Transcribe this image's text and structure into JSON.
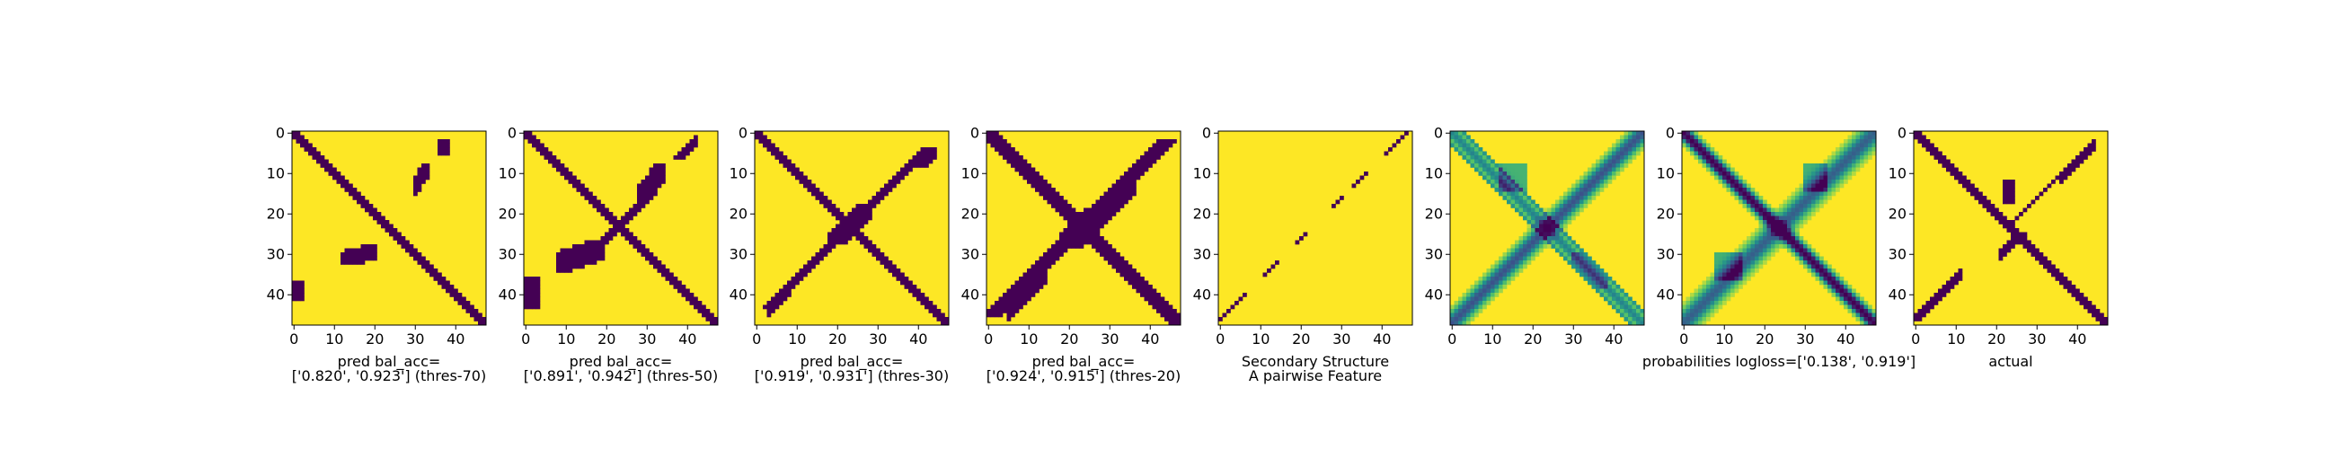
{
  "colors": {
    "high": "#fde725",
    "low": "#440154",
    "mid": "#21918c"
  },
  "chart_data": [
    {
      "type": "heatmap",
      "matrix_size": 48,
      "xlim": [
        0,
        47
      ],
      "ylim": [
        47,
        0
      ],
      "xticks": [
        "0",
        "10",
        "20",
        "30",
        "40"
      ],
      "yticks": [
        "0",
        "10",
        "20",
        "30",
        "40"
      ],
      "caption_lines": [
        "pred bal_acc=",
        "['0.820', '0.923'] (thres-70)"
      ],
      "values": {
        "bal_acc": [
          0.82,
          0.923
        ],
        "threshold": 70
      }
    },
    {
      "type": "heatmap",
      "matrix_size": 48,
      "xlim": [
        0,
        47
      ],
      "ylim": [
        47,
        0
      ],
      "xticks": [
        "0",
        "10",
        "20",
        "30",
        "40"
      ],
      "yticks": [
        "0",
        "10",
        "20",
        "30",
        "40"
      ],
      "caption_lines": [
        "pred bal_acc=",
        "['0.891', '0.942'] (thres-50)"
      ],
      "values": {
        "bal_acc": [
          0.891,
          0.942
        ],
        "threshold": 50
      }
    },
    {
      "type": "heatmap",
      "matrix_size": 48,
      "xlim": [
        0,
        47
      ],
      "ylim": [
        47,
        0
      ],
      "xticks": [
        "0",
        "10",
        "20",
        "30",
        "40"
      ],
      "yticks": [
        "0",
        "10",
        "20",
        "30",
        "40"
      ],
      "caption_lines": [
        "pred bal_acc=",
        "['0.919', '0.931'] (thres-30)"
      ],
      "values": {
        "bal_acc": [
          0.919,
          0.931
        ],
        "threshold": 30
      }
    },
    {
      "type": "heatmap",
      "matrix_size": 48,
      "xlim": [
        0,
        47
      ],
      "ylim": [
        47,
        0
      ],
      "xticks": [
        "0",
        "10",
        "20",
        "30",
        "40"
      ],
      "yticks": [
        "0",
        "10",
        "20",
        "30",
        "40"
      ],
      "caption_lines": [
        "pred bal_acc=",
        "['0.924', '0.915'] (thres-20)"
      ],
      "values": {
        "bal_acc": [
          0.924,
          0.915
        ],
        "threshold": 20
      }
    },
    {
      "type": "heatmap",
      "matrix_size": 48,
      "xlim": [
        0,
        47
      ],
      "ylim": [
        47,
        0
      ],
      "xticks": [
        "0",
        "10",
        "20",
        "30",
        "40"
      ],
      "yticks": [
        "0",
        "10",
        "20",
        "30",
        "40"
      ],
      "caption_lines": [
        "Secondary Structure",
        "A pairwise Feature"
      ]
    },
    {
      "type": "heatmap",
      "matrix_size": 48,
      "xlim": [
        0,
        47
      ],
      "ylim": [
        47,
        0
      ],
      "xticks": [
        "0",
        "10",
        "20",
        "30",
        "40"
      ],
      "yticks": [
        "0",
        "10",
        "20",
        "30",
        "40"
      ],
      "caption_lines": [
        ""
      ]
    },
    {
      "type": "heatmap",
      "matrix_size": 48,
      "xlim": [
        0,
        47
      ],
      "ylim": [
        47,
        0
      ],
      "xticks": [
        "0",
        "10",
        "20",
        "30",
        "40"
      ],
      "yticks": [
        "0",
        "10",
        "20",
        "30",
        "40"
      ],
      "caption_lines": [
        "probabilities logloss=['0.138', '0.919']"
      ],
      "values": {
        "logloss": [
          0.138,
          0.919
        ]
      }
    },
    {
      "type": "heatmap",
      "matrix_size": 48,
      "xlim": [
        0,
        47
      ],
      "ylim": [
        47,
        0
      ],
      "xticks": [
        "0",
        "10",
        "20",
        "30",
        "40"
      ],
      "yticks": [
        "0",
        "10",
        "20",
        "30",
        "40"
      ],
      "caption_lines": [
        "actual"
      ]
    }
  ]
}
